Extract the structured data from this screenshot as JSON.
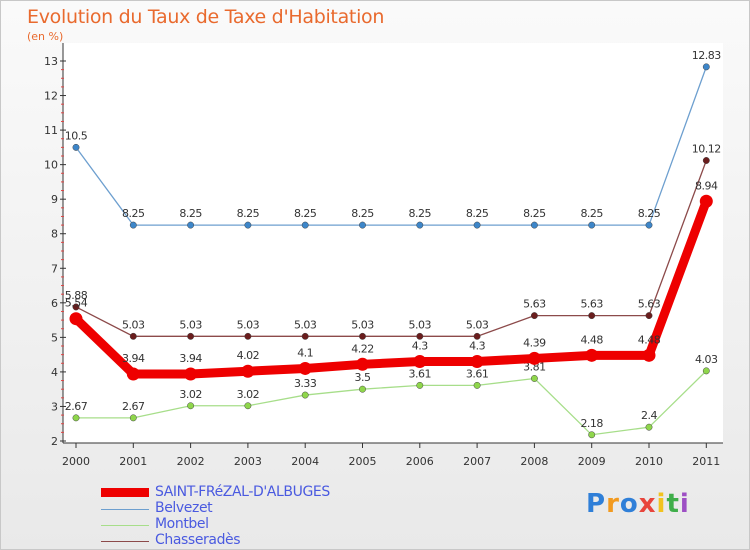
{
  "chart_data": {
    "type": "line",
    "title": "Evolution du Taux de Taxe d'Habitation",
    "unit_label": "(en %)",
    "categories": [
      "2000",
      "2001",
      "2002",
      "2003",
      "2004",
      "2005",
      "2006",
      "2007",
      "2008",
      "2009",
      "2010",
      "2011"
    ],
    "ylim": [
      2,
      13
    ],
    "yticks": [
      "2",
      "3",
      "4",
      "5",
      "6",
      "7",
      "8",
      "9",
      "10",
      "11",
      "12",
      "13"
    ],
    "series": [
      {
        "name": "SAINT-FRéZAL-D'ALBUGES",
        "color": "#ee0000",
        "marker_color": "#ee0000",
        "emphasis": true,
        "values": [
          5.54,
          3.94,
          3.94,
          4.02,
          4.1,
          4.22,
          4.3,
          4.3,
          4.39,
          4.48,
          4.48,
          8.94
        ],
        "labels": [
          "5.54",
          "3.94",
          "3.94",
          "4.02",
          "4.1",
          "4.22",
          "4.3",
          "4.3",
          "4.39",
          "4.48",
          "4.48",
          "8.94"
        ]
      },
      {
        "name": "Belvezet",
        "color": "#6d9fcf",
        "marker_color": "#3d86c9",
        "emphasis": false,
        "values": [
          10.5,
          8.25,
          8.25,
          8.25,
          8.25,
          8.25,
          8.25,
          8.25,
          8.25,
          8.25,
          8.25,
          12.83
        ],
        "labels": [
          "10.5",
          "8.25",
          "8.25",
          "8.25",
          "8.25",
          "8.25",
          "8.25",
          "8.25",
          "8.25",
          "8.25",
          "8.25",
          "12.83"
        ]
      },
      {
        "name": "Montbel",
        "color": "#a7de8a",
        "marker_color": "#8fd64b",
        "emphasis": false,
        "values": [
          2.67,
          2.67,
          3.02,
          3.02,
          3.33,
          3.5,
          3.61,
          3.61,
          3.81,
          2.18,
          2.4,
          4.03
        ],
        "labels": [
          "2.67",
          "2.67",
          "3.02",
          "3.02",
          "3.33",
          "3.5",
          "3.61",
          "3.61",
          "3.81",
          "2.18",
          "2.4",
          "4.03"
        ]
      },
      {
        "name": "Chasseradès",
        "color": "#8c4a4a",
        "marker_color": "#6a1d1d",
        "emphasis": false,
        "values": [
          5.88,
          5.03,
          5.03,
          5.03,
          5.03,
          5.03,
          5.03,
          5.03,
          5.63,
          5.63,
          5.63,
          10.12
        ],
        "labels": [
          "5.88",
          "5.03",
          "5.03",
          "5.03",
          "5.03",
          "5.03",
          "5.03",
          "5.03",
          "5.63",
          "5.63",
          "5.63",
          "10.12"
        ]
      }
    ],
    "legend_position": "bottom-left"
  },
  "logo": {
    "letters": [
      "P",
      "r",
      "o",
      "x",
      "i",
      "t",
      "i"
    ]
  }
}
